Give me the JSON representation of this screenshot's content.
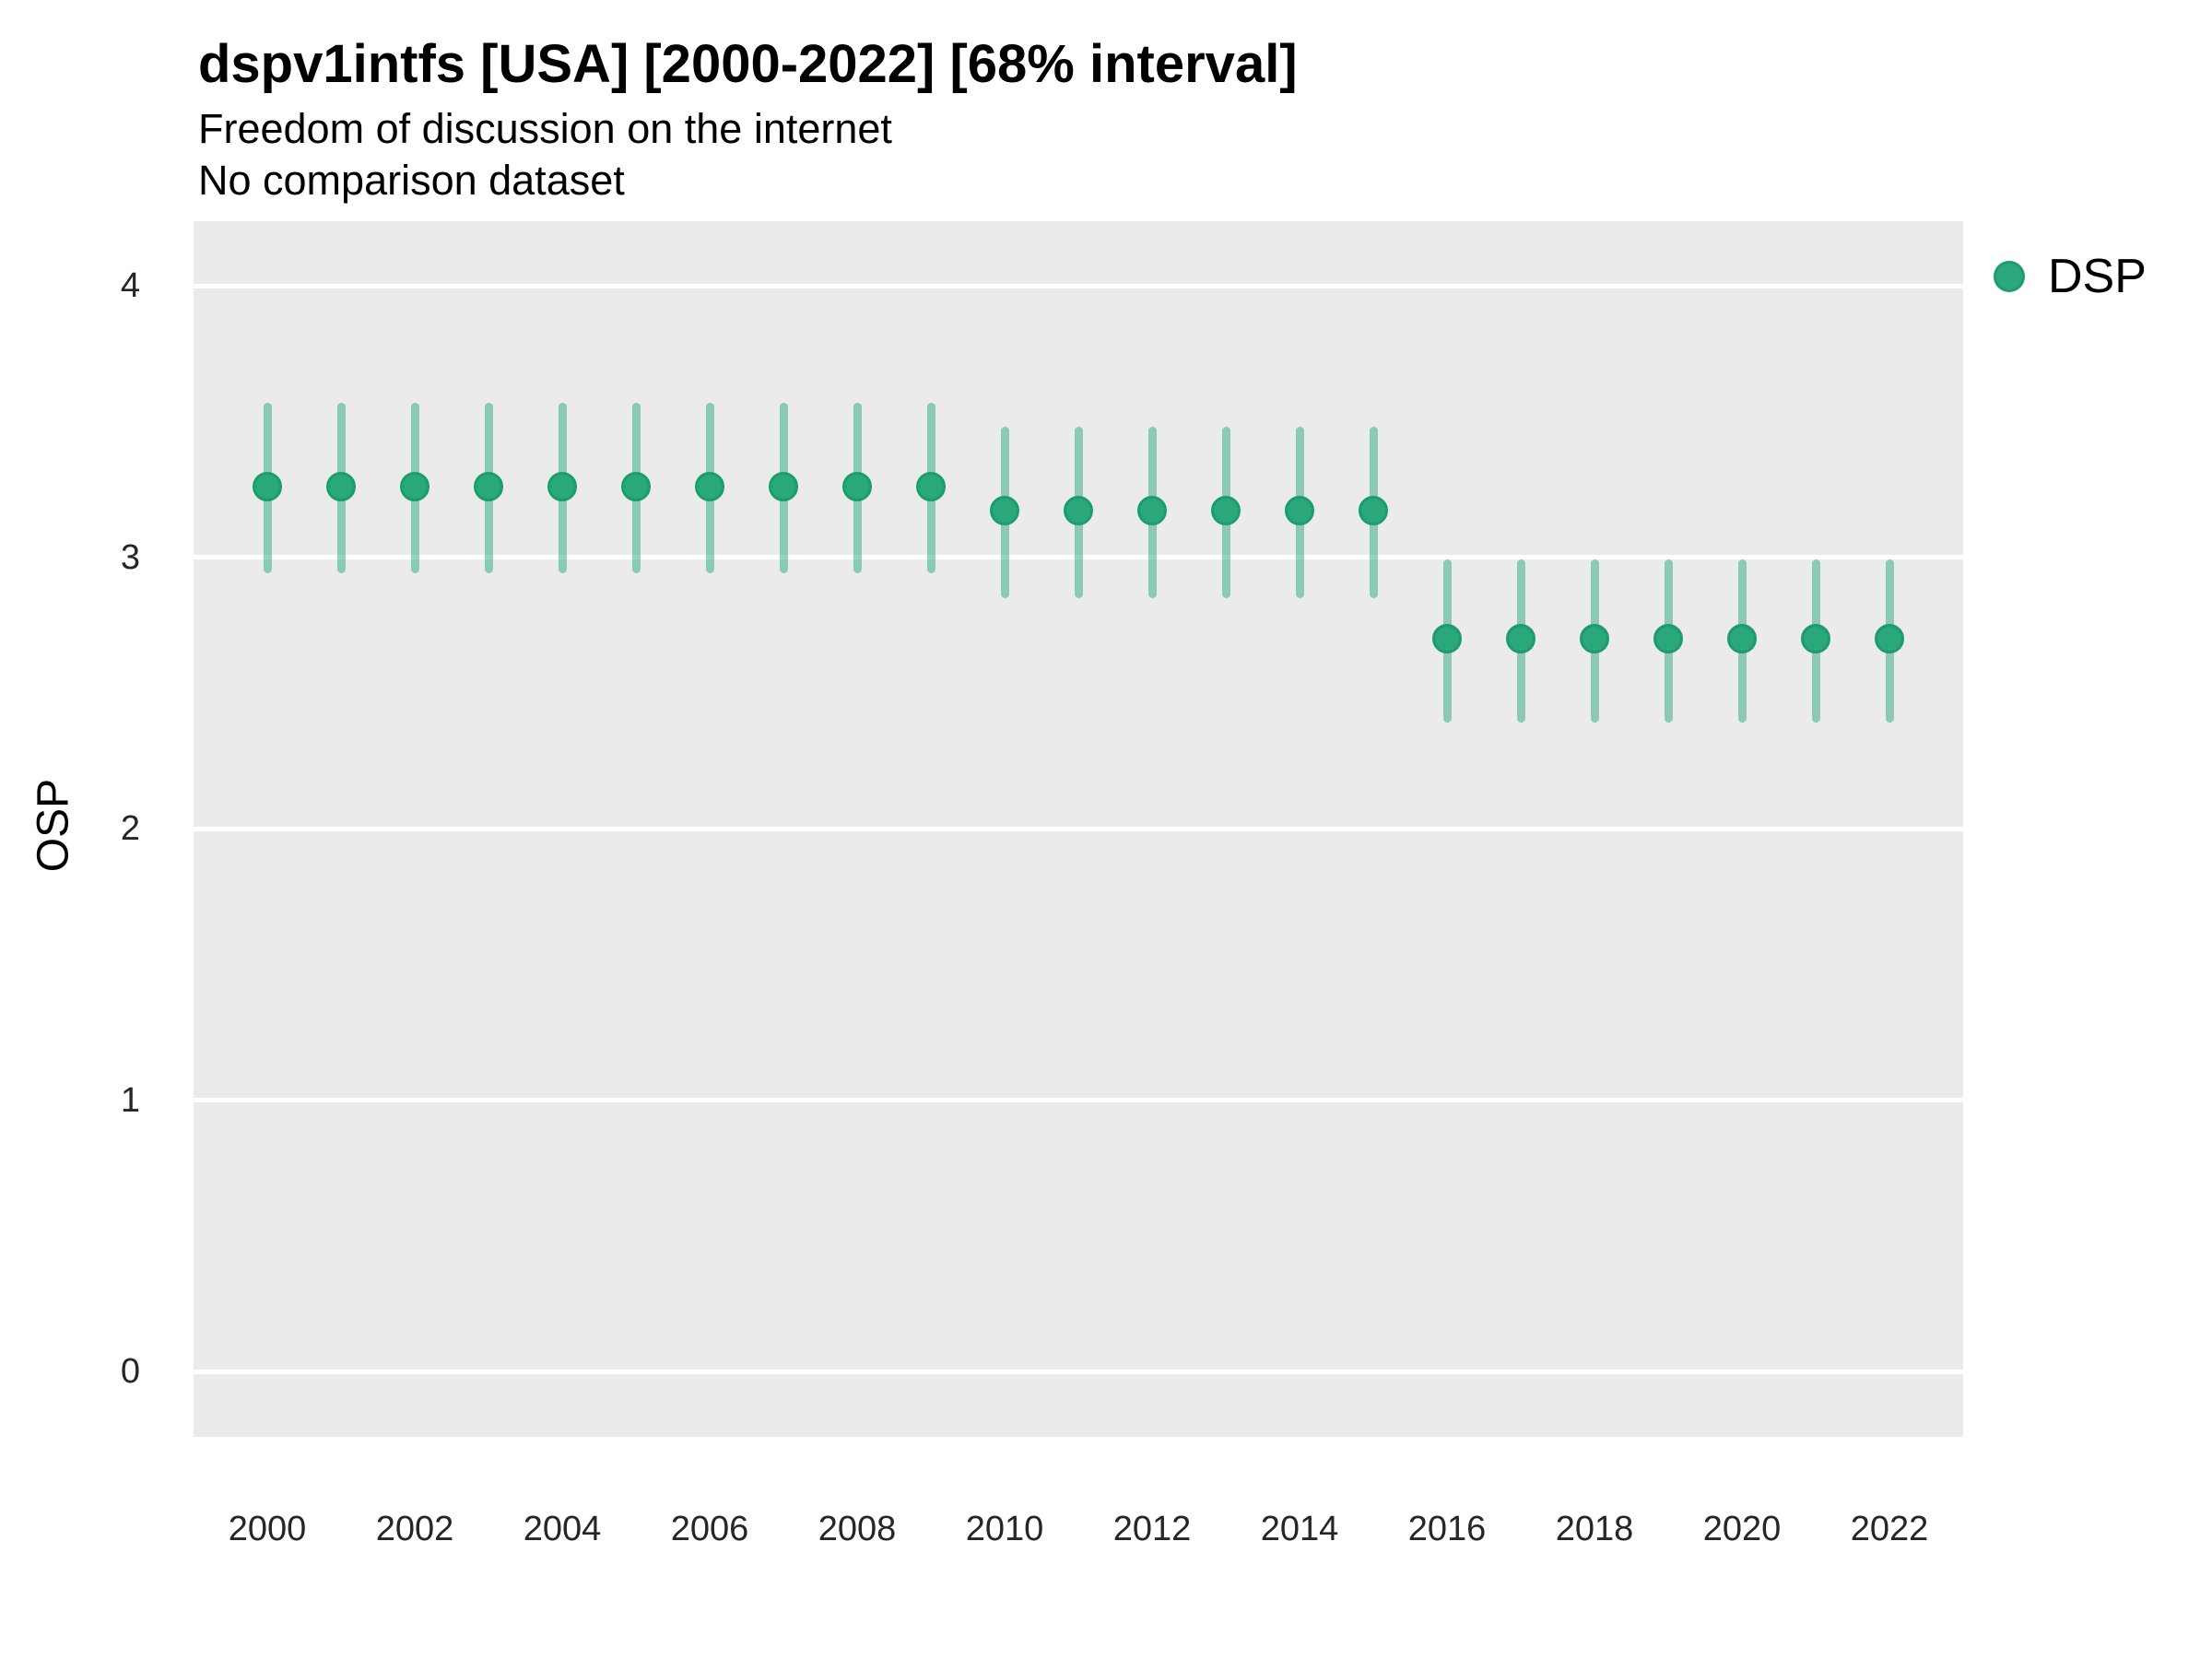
{
  "header": {
    "title": "dspv1intfs [USA] [2000-2022] [68% interval]",
    "subtitle": "Freedom of discussion on the internet",
    "note": "No comparison dataset"
  },
  "y_axis": {
    "label": "OSP"
  },
  "legend": {
    "label": "DSP"
  },
  "colors": {
    "point_fill": "#2aa77b",
    "point_stroke": "#1a9e6b",
    "interval_bar": "rgba(42,167,123,0.5)",
    "panel_background": "#ebebeb",
    "gridline": "#ffffff",
    "tick_text": "#262626"
  },
  "chart_data": {
    "type": "scatter",
    "subtype": "pointrange",
    "title": "dspv1intfs [USA] [2000-2022] [68% interval]",
    "subtitle": "Freedom of discussion on the internet",
    "note": "No comparison dataset",
    "xlabel": "",
    "ylabel": "OSP",
    "interval": "68%",
    "legend_position": "right-top",
    "grid": "major-horizontal-only",
    "ylim": [
      0,
      4
    ],
    "yticks": [
      0,
      1,
      2,
      3,
      4
    ],
    "xticks": [
      2000,
      2002,
      2004,
      2006,
      2008,
      2010,
      2012,
      2014,
      2016,
      2018,
      2020,
      2022
    ],
    "x": [
      2000,
      2001,
      2002,
      2003,
      2004,
      2005,
      2006,
      2007,
      2008,
      2009,
      2010,
      2011,
      2012,
      2013,
      2014,
      2015,
      2016,
      2017,
      2018,
      2019,
      2020,
      2021,
      2022
    ],
    "series": [
      {
        "name": "DSP",
        "estimates": [
          3.26,
          3.26,
          3.26,
          3.26,
          3.26,
          3.26,
          3.26,
          3.26,
          3.26,
          3.26,
          3.17,
          3.17,
          3.17,
          3.17,
          3.17,
          3.17,
          2.7,
          2.7,
          2.7,
          2.7,
          2.7,
          2.7,
          2.7
        ],
        "lower": [
          2.94,
          2.94,
          2.94,
          2.94,
          2.94,
          2.94,
          2.94,
          2.94,
          2.94,
          2.94,
          2.85,
          2.85,
          2.85,
          2.85,
          2.85,
          2.85,
          2.39,
          2.39,
          2.39,
          2.39,
          2.39,
          2.39,
          2.39
        ],
        "upper": [
          3.57,
          3.57,
          3.57,
          3.57,
          3.57,
          3.57,
          3.57,
          3.57,
          3.57,
          3.57,
          3.48,
          3.48,
          3.48,
          3.48,
          3.48,
          3.48,
          2.99,
          2.99,
          2.99,
          2.99,
          2.99,
          2.99,
          2.99
        ]
      }
    ]
  }
}
